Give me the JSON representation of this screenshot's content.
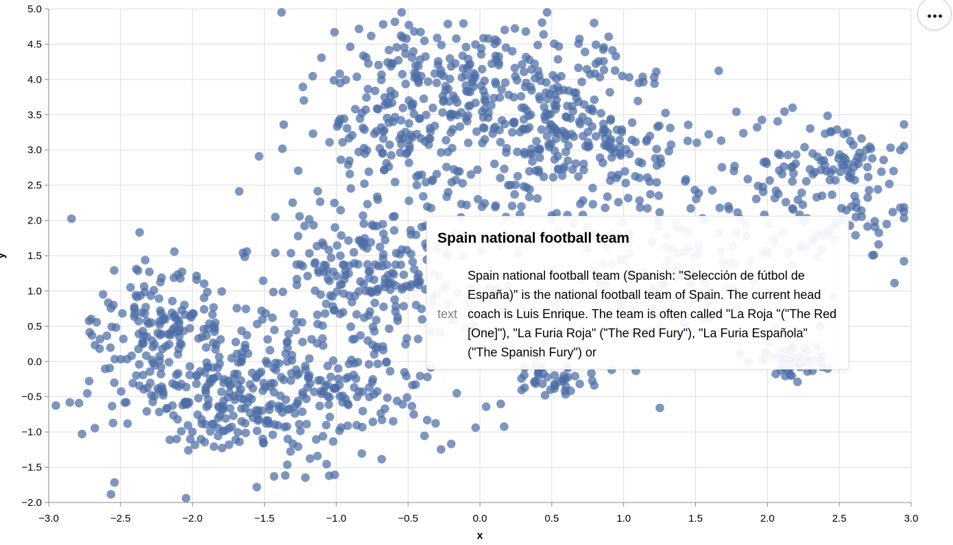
{
  "chart_data": {
    "type": "scatter",
    "xlabel": "x",
    "ylabel": "y",
    "xlim": [
      -3.0,
      3.0
    ],
    "ylim": [
      -2.0,
      5.0
    ],
    "x_ticks": [
      "−3.0",
      "−2.5",
      "−2.0",
      "−1.5",
      "−1.0",
      "−0.5",
      "0.0",
      "0.5",
      "1.0",
      "1.5",
      "2.0",
      "2.5",
      "3.0"
    ],
    "y_ticks": [
      "−2.0",
      "−1.5",
      "−1.0",
      "−0.5",
      "0.0",
      "0.5",
      "1.0",
      "1.5",
      "2.0",
      "2.5",
      "3.0",
      "3.5",
      "4.0",
      "4.5",
      "5.0"
    ],
    "grid": true,
    "point_color": "#4c6ea6",
    "point_count": 1700,
    "clusters": [
      {
        "center": [
          -1.5,
          -0.4
        ],
        "spread": [
          0.55,
          0.55
        ],
        "count": 420
      },
      {
        "center": [
          -2.25,
          0.6
        ],
        "spread": [
          0.2,
          0.45
        ],
        "count": 110
      },
      {
        "center": [
          -0.7,
          1.3
        ],
        "spread": [
          0.4,
          0.55
        ],
        "count": 220
      },
      {
        "center": [
          -0.6,
          3.4
        ],
        "spread": [
          0.35,
          0.7
        ],
        "count": 160
      },
      {
        "center": [
          0.15,
          4.0
        ],
        "spread": [
          0.45,
          0.45
        ],
        "count": 180
      },
      {
        "center": [
          0.6,
          3.1
        ],
        "spread": [
          0.45,
          0.55
        ],
        "count": 240
      },
      {
        "center": [
          2.4,
          2.6
        ],
        "spread": [
          0.35,
          0.45
        ],
        "count": 150
      },
      {
        "center": [
          0.55,
          -0.25
        ],
        "spread": [
          0.18,
          0.12
        ],
        "count": 40
      },
      {
        "center": [
          1.4,
          1.5
        ],
        "spread": [
          0.55,
          0.6
        ],
        "count": 130
      },
      {
        "center": [
          2.15,
          0.0
        ],
        "spread": [
          0.15,
          0.15
        ],
        "count": 50
      }
    ]
  },
  "tooltip": {
    "title": "Spain national football team",
    "key": "text",
    "value": "Spain national football team (Spanish: \"Selección de fútbol de España)\" is the national football team of Spain. The current head coach is Luis Enrique. The team is often called \"La Roja \"(\"The Red [One]\"), \"La Furia Roja\" (\"The Red Fury\"), \"La Furia Española\" (\"The Spanish Fury\") or"
  },
  "actions_menu": {
    "icon": "ellipsis-icon"
  }
}
